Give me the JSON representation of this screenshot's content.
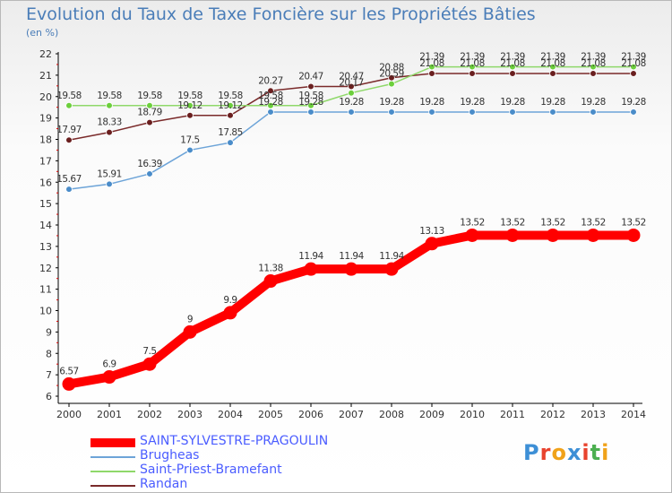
{
  "title": "Evolution du Taux de Taxe Foncière sur les Propriétés Bâties",
  "unit_label": "(en %)",
  "logo": {
    "text": "Proxiti",
    "letters": [
      "P",
      "r",
      "o",
      "x",
      "i",
      "t",
      "i"
    ],
    "colors": [
      "#3d8fd6",
      "#e8432e",
      "#f0a21a",
      "#3d8fd6",
      "#e8432e",
      "#4caf50",
      "#f0a21a"
    ]
  },
  "chart_data": {
    "type": "line",
    "title": "Evolution du Taux de Taxe Foncière sur les Propriétés Bâties",
    "ylabel": "(en %)",
    "xlabel": "",
    "x": [
      2000,
      2001,
      2002,
      2003,
      2004,
      2005,
      2006,
      2007,
      2008,
      2009,
      2010,
      2011,
      2012,
      2013,
      2014
    ],
    "ylim": [
      6,
      22
    ],
    "yticks": [
      6,
      7,
      8,
      9,
      10,
      11,
      12,
      13,
      14,
      15,
      16,
      17,
      18,
      19,
      20,
      21,
      22
    ],
    "grid": false,
    "legend_position": "bottom-left",
    "series": [
      {
        "name": "SAINT-SYLVESTRE-PRAGOULIN",
        "color": "#ff0000",
        "marker": "#ff0000",
        "values": [
          6.57,
          6.9,
          7.5,
          9,
          9.9,
          11.38,
          11.94,
          11.94,
          11.94,
          13.13,
          13.52,
          13.52,
          13.52,
          13.52,
          13.52
        ],
        "labels": [
          "6.57",
          "6.9",
          "7.5",
          "9",
          "9.9",
          "11.38",
          "11.94",
          "11.94",
          "11.94",
          "13.13",
          "13.52",
          "13.52",
          "13.52",
          "13.52",
          "13.52"
        ]
      },
      {
        "name": "Brugheas",
        "color": "#6da4d8",
        "marker": "#4a8cc9",
        "values": [
          15.67,
          15.91,
          16.39,
          17.5,
          17.85,
          19.28,
          19.28,
          19.28,
          19.28,
          19.28,
          19.28,
          19.28,
          19.28,
          19.28,
          19.28
        ],
        "labels": [
          "15.67",
          "15.91",
          "16.39",
          "17.5",
          "17.85",
          "19.28",
          "19.28",
          "19.28",
          "19.28",
          "19.28",
          "19.28",
          "19.28",
          "19.28",
          "19.28",
          "19.28"
        ]
      },
      {
        "name": "Saint-Priest-Bramefant",
        "color": "#8fd86a",
        "marker": "#6ccf3c",
        "values": [
          19.58,
          19.58,
          19.58,
          19.58,
          19.58,
          19.58,
          19.58,
          20.17,
          20.59,
          21.39,
          21.39,
          21.39,
          21.39,
          21.39,
          21.39
        ],
        "labels": [
          "19.58",
          "19.58",
          "19.58",
          "19.58",
          "19.58",
          "19.58",
          "19.58",
          "20.17",
          "20.59",
          "21.39",
          "21.39",
          "21.39",
          "21.39",
          "21.39",
          "21.39"
        ]
      },
      {
        "name": "Randan",
        "color": "#7a2a2a",
        "marker": "#6a1f1f",
        "values": [
          17.97,
          18.33,
          18.79,
          19.12,
          19.12,
          20.27,
          20.47,
          20.47,
          20.88,
          21.08,
          21.08,
          21.08,
          21.08,
          21.08,
          21.08
        ],
        "labels": [
          "17.97",
          "18.33",
          "18.79",
          "19.12",
          "19.12",
          "20.27",
          "20.47",
          "20.47",
          "20.88",
          "21.08",
          "21.08",
          "21.08",
          "21.08",
          "21.08",
          "21.08"
        ]
      }
    ]
  }
}
